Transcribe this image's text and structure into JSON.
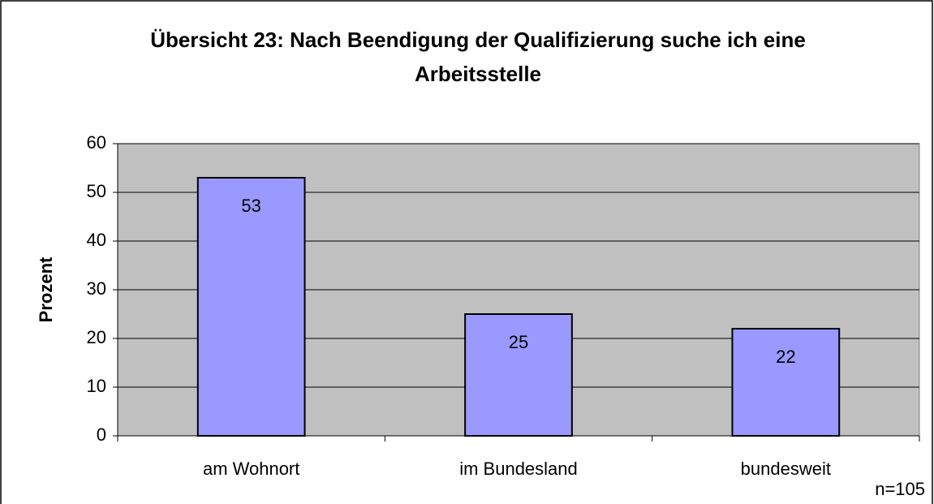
{
  "chart_data": {
    "type": "bar",
    "title": "Übersicht 23: Nach Beendigung der Qualifizierung suche ich eine Arbeitsstelle",
    "y_label": "Prozent",
    "annotation": "n=105",
    "categories": [
      "am Wohnort",
      "im Bundesland",
      "bundesweit"
    ],
    "values": [
      53,
      25,
      22
    ],
    "color": "#9999ff",
    "ylim": [
      0,
      60
    ],
    "yticks": [
      0,
      10,
      20,
      30,
      40,
      50,
      60
    ],
    "grid": true
  }
}
